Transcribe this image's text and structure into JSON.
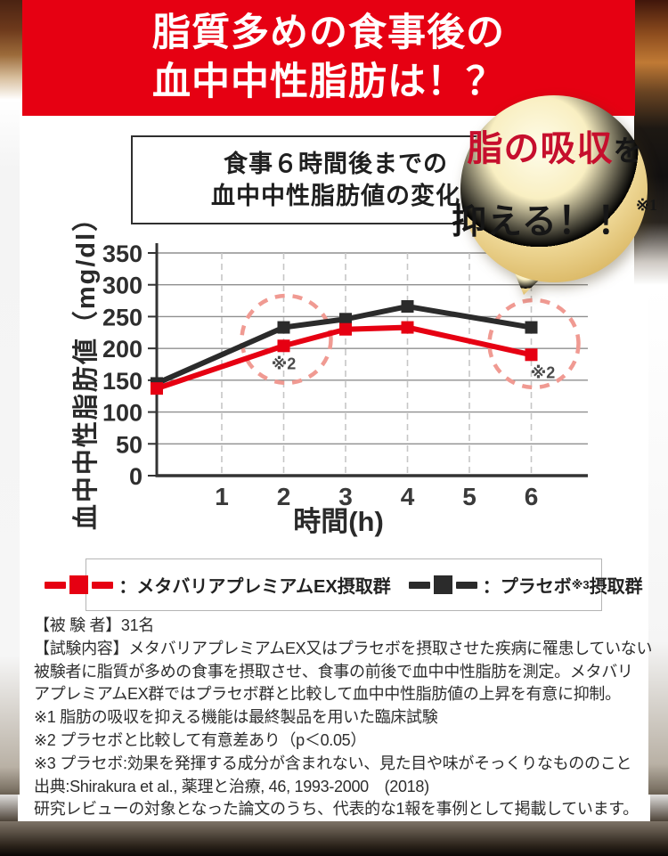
{
  "banner": {
    "line1": "脂質多めの食事後の",
    "line2": "血中中性脂肪は！？"
  },
  "chart_title": {
    "line1": "食事６時間後までの",
    "line2": "血中中性脂肪値の変化"
  },
  "badge": {
    "highlight": "脂の吸収",
    "particle": "を",
    "action": "抑える",
    "bang": "！！",
    "note": "※1"
  },
  "chart_data": {
    "type": "line",
    "title": "食事６時間後までの血中中性脂肪値の変化",
    "xlabel": "時間(h)",
    "ylabel": "血中中性脂肪値（mg/dl）",
    "x": [
      0,
      2,
      3,
      4,
      6
    ],
    "x_ticks": [
      1,
      2,
      3,
      4,
      5,
      6
    ],
    "y_ticks": [
      0,
      50,
      100,
      150,
      200,
      250,
      300,
      350
    ],
    "ylim": [
      0,
      350
    ],
    "grid": {
      "horizontal": "solid",
      "vertical": "dashed"
    },
    "legend_position": "below",
    "series": [
      {
        "name": "メタバリアプレミアムEX摂取群",
        "color": "#e60012",
        "values": [
          137,
          204,
          230,
          233,
          190
        ]
      },
      {
        "name": "プラセボ※3摂取群",
        "color": "#2b2b2b",
        "values": [
          145,
          233,
          246,
          266,
          233
        ]
      }
    ],
    "annotations": [
      {
        "label": "※2",
        "x": 2,
        "circle": true,
        "dx": 0
      },
      {
        "label": "※2",
        "x": 6,
        "circle": true,
        "dx": 13
      }
    ],
    "annotation_circle_color": "#f09a92"
  },
  "legend": {
    "items": [
      {
        "symbol_color": "#e60012",
        "prefix": "：メタバリアプレミアムEX摂取群",
        "sup": "",
        "suffix": ""
      },
      {
        "symbol_color": "#2b2b2b",
        "prefix": "：プラセボ",
        "sup": "※3",
        "suffix": "摂取群"
      }
    ]
  },
  "footnotes": {
    "lines": [
      "【被 験 者】31名",
      "【試験内容】メタバリアプレミアムEX又はプラセボを摂取させた疾病に罹患していない",
      "被験者に脂質が多めの食事を摂取させ、食事の前後で血中中性脂肪を測定。メタバリ",
      "アプレミアムEX群ではプラセボ群と比較して血中中性脂肪値の上昇を有意に抑制。",
      "※1 脂肪の吸収を抑える機能は最終製品を用いた臨床試験",
      "※2 プラセボと比較して有意差あり（p＜0.05）",
      "※3 プラセボ:効果を発揮する成分が含まれない、見た目や味がそっくりなもののこと",
      "出典:Shirakura et al., 薬理と治療, 46, 1993-2000　(2018)",
      "研究レビューの対象となった論文のうち、代表的な1報を事例として掲載しています。"
    ]
  },
  "colors": {
    "banner_red": "#e60012",
    "series_red": "#e60012",
    "series_black": "#2b2b2b",
    "annotation_pink": "#f09a92",
    "badge_gold_edge": "#d8b45f",
    "badge_text_red": "#c60f2d"
  }
}
